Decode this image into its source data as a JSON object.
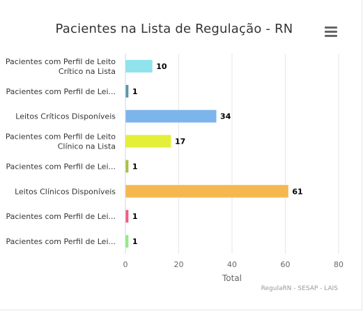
{
  "title": "Pacientes na Lista de Regulação - RN",
  "credits": "RegulaRN - SESAP - LAIS",
  "menu_icon": "hamburger-menu-icon",
  "chart_data": {
    "type": "bar",
    "orientation": "horizontal",
    "categories": [
      [
        "Pacientes com Perfil de Leito",
        "Crítico na Lista"
      ],
      [
        "Pacientes com Perfil de Lei..."
      ],
      [
        "Leitos Críticos Disponíveis"
      ],
      [
        "Pacientes com Perfil de Leito",
        "Clínico na Lista"
      ],
      [
        "Pacientes com Perfil de Lei..."
      ],
      [
        "Leitos Clínicos Disponíveis"
      ],
      [
        "Pacientes com Perfil de Lei..."
      ],
      [
        "Pacientes com Perfil de Lei..."
      ]
    ],
    "values": [
      10,
      1,
      34,
      17,
      1,
      61,
      1,
      1
    ],
    "colors": [
      "#90e3ec",
      "#5b94a8",
      "#7cb5ec",
      "#e4ef3a",
      "#a9c23f",
      "#f7b750",
      "#f15c80",
      "#90ed7d"
    ],
    "xlabel": "Total",
    "xlim": [
      0,
      80
    ],
    "ticks": [
      0,
      20,
      40,
      60,
      80
    ],
    "grid": true,
    "data_labels": true
  }
}
